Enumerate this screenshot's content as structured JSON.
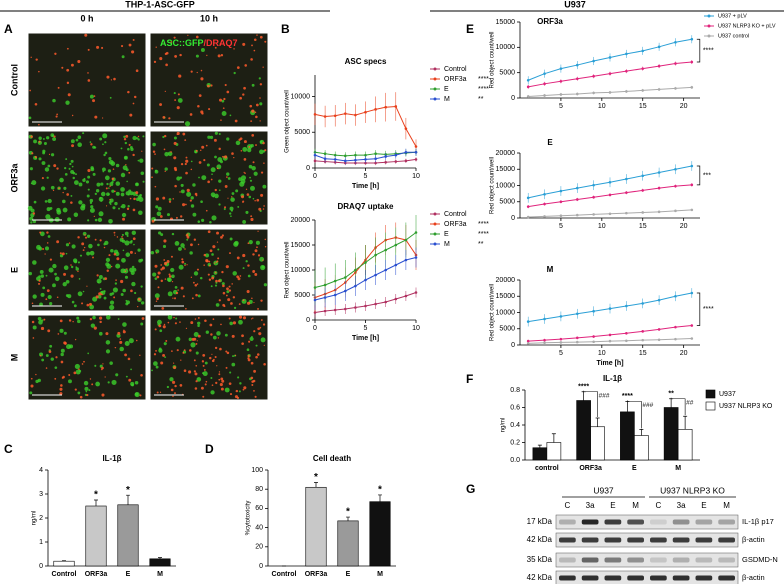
{
  "figure": {
    "headers": [
      "THP-1-ASC-GFP",
      "U937"
    ],
    "panel_labels": [
      "A",
      "B",
      "C",
      "D",
      "E",
      "F",
      "G"
    ]
  },
  "microscopy": {
    "columns": [
      "0 h",
      "10 h"
    ],
    "rows": [
      "Control",
      "ORF3a",
      "E",
      "M"
    ],
    "overlay": [
      "ASC::GFP",
      "/DRAQ7"
    ]
  },
  "chart_data": [
    {
      "type": "line",
      "title": "ASC specs",
      "ylabel": "Green object count/well",
      "xlabel": "Time [h]",
      "legend": "outside right",
      "x": [
        0,
        1,
        2,
        3,
        4,
        5,
        6,
        7,
        8,
        9,
        10
      ],
      "xlim": [
        0,
        10
      ],
      "xticks": [
        0,
        5,
        10
      ],
      "ylim": [
        0,
        13000
      ],
      "yticks": [
        0,
        5000,
        10000
      ],
      "series": [
        {
          "name": "Control",
          "color": "#b03060",
          "values": [
            1000,
            900,
            800,
            700,
            700,
            700,
            700,
            800,
            900,
            1000,
            1200
          ],
          "errors": [
            300,
            300,
            300,
            300,
            300,
            300,
            300,
            300,
            300,
            300,
            300
          ]
        },
        {
          "name": "ORF3a",
          "color": "#e8401c",
          "significance": "****",
          "values": [
            7500,
            7200,
            7300,
            7600,
            7400,
            7800,
            8200,
            8500,
            8600,
            5500,
            3000
          ],
          "errors": [
            1500,
            1500,
            1500,
            1500,
            1500,
            1500,
            1800,
            2000,
            2000,
            1500,
            1000
          ]
        },
        {
          "name": "E",
          "color": "#2e9e2e",
          "significance": "****",
          "values": [
            2200,
            2000,
            1800,
            1700,
            1800,
            1800,
            2000,
            1900,
            2000,
            2100,
            2200
          ],
          "errors": [
            500,
            500,
            500,
            500,
            500,
            500,
            500,
            500,
            500,
            500,
            500
          ]
        },
        {
          "name": "M",
          "color": "#2a4fd0",
          "significance": "**",
          "values": [
            1800,
            1300,
            1200,
            1000,
            1100,
            1200,
            1300,
            1600,
            1800,
            2200,
            2200
          ],
          "errors": [
            500,
            500,
            500,
            500,
            500,
            500,
            500,
            500,
            500,
            500,
            500
          ]
        }
      ]
    },
    {
      "type": "line",
      "title": "DRAQ7 uptake",
      "ylabel": "Red object count/well",
      "xlabel": "Time [h]",
      "legend": "outside right",
      "x": [
        0,
        1,
        2,
        3,
        4,
        5,
        6,
        7,
        8,
        9,
        10
      ],
      "xlim": [
        0,
        10
      ],
      "xticks": [
        0,
        5,
        10
      ],
      "ylim": [
        0,
        20000
      ],
      "yticks": [
        0,
        5000,
        10000,
        15000,
        20000
      ],
      "series": [
        {
          "name": "Control",
          "color": "#b03060",
          "values": [
            1500,
            1800,
            2000,
            2200,
            2500,
            2800,
            3200,
            3600,
            4200,
            4800,
            5500
          ],
          "errors": [
            1000,
            1000,
            1000,
            1000,
            1000,
            1000,
            1000,
            1000,
            1000,
            1000,
            1000
          ]
        },
        {
          "name": "ORF3a",
          "color": "#e8401c",
          "significance": "****",
          "values": [
            4500,
            5200,
            6000,
            7500,
            9500,
            12000,
            14500,
            16000,
            16500,
            16000,
            13000
          ],
          "errors": [
            3000,
            3000,
            3000,
            3000,
            3000,
            3000,
            3000,
            3000,
            3000,
            3000,
            3000
          ]
        },
        {
          "name": "E",
          "color": "#2e9e2e",
          "significance": "****",
          "values": [
            6500,
            7000,
            7800,
            8500,
            10000,
            11500,
            13000,
            14000,
            15000,
            16000,
            17500
          ],
          "errors": [
            3500,
            3500,
            3500,
            3500,
            3500,
            3500,
            3500,
            3500,
            3500,
            3500,
            3500
          ]
        },
        {
          "name": "M",
          "color": "#2a4fd0",
          "significance": "**",
          "values": [
            4000,
            4500,
            5000,
            5800,
            6800,
            8000,
            9000,
            10000,
            11000,
            12000,
            12500
          ],
          "errors": [
            2000,
            2000,
            2000,
            2000,
            2000,
            2000,
            2000,
            2000,
            2000,
            2000,
            2000
          ]
        }
      ]
    },
    {
      "type": "line",
      "title": "ORF3a",
      "ylabel": "Red object count/well",
      "legend": "upper right",
      "annotation": "****",
      "x": [
        1,
        3,
        5,
        7,
        9,
        11,
        13,
        15,
        17,
        19,
        21
      ],
      "xlim": [
        0,
        22
      ],
      "xticks": [
        5,
        10,
        15,
        20
      ],
      "ylim": [
        0,
        15000
      ],
      "yticks": [
        0,
        5000,
        10000,
        15000
      ],
      "series": [
        {
          "name": "U937 + pLV",
          "color": "#2a9fd6",
          "values": [
            3500,
            4800,
            5800,
            6500,
            7300,
            8000,
            8700,
            9300,
            10100,
            11000,
            11600
          ],
          "errors": [
            800,
            800,
            800,
            800,
            800,
            800,
            800,
            800,
            800,
            800,
            800
          ]
        },
        {
          "name": "U937 NLRP3 KO + pLV",
          "color": "#e0247c",
          "values": [
            2200,
            2800,
            3300,
            3800,
            4300,
            4800,
            5300,
            5800,
            6300,
            6800,
            7100
          ],
          "errors": [
            400,
            400,
            400,
            400,
            400,
            400,
            400,
            400,
            400,
            400,
            400
          ]
        },
        {
          "name": "U937 control",
          "color": "#aaaaaa",
          "values": [
            300,
            500,
            700,
            800,
            1000,
            1100,
            1300,
            1500,
            1700,
            1900,
            2100
          ],
          "errors": [
            300,
            300,
            300,
            300,
            300,
            300,
            300,
            300,
            300,
            300,
            300
          ]
        }
      ]
    },
    {
      "type": "line",
      "title": "E",
      "ylabel": "Red object count/well",
      "annotation": "***",
      "x": [
        1,
        3,
        5,
        7,
        9,
        11,
        13,
        15,
        17,
        19,
        21
      ],
      "xlim": [
        0,
        22
      ],
      "xticks": [
        5,
        10,
        15,
        20
      ],
      "ylim": [
        0,
        20000
      ],
      "yticks": [
        0,
        5000,
        10000,
        15000,
        20000
      ],
      "series": [
        {
          "color": "#2a9fd6",
          "values": [
            6200,
            7300,
            8300,
            9200,
            10100,
            11000,
            12000,
            13000,
            14000,
            15000,
            16000
          ],
          "errors": [
            1500,
            1500,
            1500,
            1500,
            1500,
            1500,
            1500,
            1500,
            1500,
            1500,
            1500
          ]
        },
        {
          "color": "#e0247c",
          "values": [
            3500,
            4300,
            5000,
            5700,
            6400,
            7100,
            7800,
            8500,
            9200,
            9800,
            10200
          ],
          "errors": [
            500,
            500,
            500,
            500,
            500,
            500,
            500,
            500,
            500,
            500,
            500
          ]
        },
        {
          "color": "#aaaaaa",
          "values": [
            300,
            500,
            700,
            900,
            1100,
            1300,
            1500,
            1700,
            1900,
            2200,
            2500
          ],
          "errors": [
            300,
            300,
            300,
            300,
            300,
            300,
            300,
            300,
            300,
            300,
            300
          ]
        }
      ]
    },
    {
      "type": "line",
      "title": "M",
      "ylabel": "Red object count/well",
      "xlabel": "Time [h]",
      "annotation": "****",
      "x": [
        1,
        3,
        5,
        7,
        9,
        11,
        13,
        15,
        17,
        19,
        21
      ],
      "xlim": [
        0,
        22
      ],
      "xticks": [
        5,
        10,
        15,
        20
      ],
      "ylim": [
        0,
        20000
      ],
      "yticks": [
        0,
        5000,
        10000,
        15000,
        20000
      ],
      "series": [
        {
          "color": "#2a9fd6",
          "values": [
            7200,
            8000,
            8800,
            9600,
            10400,
            11200,
            12000,
            12800,
            13800,
            15000,
            16000
          ],
          "errors": [
            1500,
            1500,
            1500,
            1500,
            1500,
            1500,
            1500,
            1500,
            1500,
            1500,
            1500
          ]
        },
        {
          "color": "#e0247c",
          "values": [
            1200,
            1500,
            1800,
            2200,
            2600,
            3100,
            3600,
            4200,
            4800,
            5500,
            6000
          ],
          "errors": [
            400,
            400,
            400,
            400,
            400,
            400,
            400,
            400,
            400,
            400,
            400
          ]
        },
        {
          "color": "#aaaaaa",
          "values": [
            500,
            700,
            800,
            900,
            1000,
            1200,
            1300,
            1500,
            1600,
            1800,
            2000
          ],
          "errors": [
            200,
            200,
            200,
            200,
            200,
            200,
            200,
            200,
            200,
            200,
            200
          ]
        }
      ]
    },
    {
      "type": "bar",
      "title": "IL-1β",
      "ylabel": "ng/ml",
      "legend": "outside right",
      "categories": [
        "control",
        "ORF3a",
        "E",
        "M"
      ],
      "ylim": [
        0,
        0.8
      ],
      "yticks": [
        {
          "value": 0,
          "label": "0.0"
        },
        0.2,
        0.4,
        0.6,
        0.8
      ],
      "comparison": [
        null,
        "###",
        "###",
        "##"
      ],
      "series": [
        {
          "name": "U937",
          "color": "#111111",
          "significance": [
            null,
            "****",
            "****",
            "**"
          ],
          "values": [
            0.14,
            0.68,
            0.55,
            0.6
          ],
          "errors": [
            0.03,
            0.1,
            0.12,
            0.1
          ]
        },
        {
          "name": "U937 NLRP3 KO",
          "color": "#ffffff",
          "values": [
            0.2,
            0.38,
            0.28,
            0.35
          ],
          "errors": [
            0.1,
            0.1,
            0.07,
            0.15
          ]
        }
      ]
    },
    {
      "type": "bar",
      "title": "IL-1β",
      "ylabel": "ng/ml",
      "categories": [
        "Control",
        "ORF3a",
        "E",
        "M"
      ],
      "values": [
        0.2,
        2.5,
        2.55,
        0.3
      ],
      "errors": [
        0.02,
        0.25,
        0.4,
        0.05
      ],
      "colors": [
        "#ffffff",
        "#c8c8c8",
        "#9a9a9a",
        "#111111"
      ],
      "stars": [
        null,
        "*",
        "*",
        null
      ],
      "ylim": [
        0,
        4
      ],
      "yticks": [
        0,
        1,
        2,
        3,
        4
      ]
    },
    {
      "type": "bar",
      "title": "Cell death",
      "ylabel": "%cytotoxicity",
      "categories": [
        "Control",
        "ORF3a",
        "E",
        "M"
      ],
      "values": [
        0,
        82,
        47,
        67
      ],
      "errors": [
        0,
        5,
        4,
        7
      ],
      "colors": [
        "#ffffff",
        "#c8c8c8",
        "#9a9a9a",
        "#111111"
      ],
      "stars": [
        null,
        "*",
        "*",
        "*"
      ],
      "ylim": [
        0,
        100
      ],
      "yticks": [
        0,
        20,
        40,
        60,
        80,
        100
      ]
    }
  ],
  "blot": {
    "groups": [
      "U937",
      "U937 NLRP3 KO"
    ],
    "lanes": [
      "C",
      "3a",
      "E",
      "M",
      "C",
      "3a",
      "E",
      "M"
    ],
    "rows": [
      {
        "kda": "17 kDa",
        "protein": "IL-1β p17"
      },
      {
        "kda": "42 kDa",
        "protein": "β-actin"
      },
      {
        "kda": "35 kDa",
        "protein": "GSDMD-N"
      },
      {
        "kda": "42 kDa",
        "protein": "β-actin"
      }
    ]
  }
}
